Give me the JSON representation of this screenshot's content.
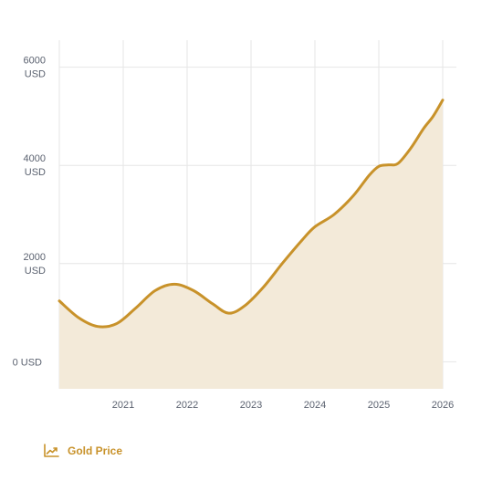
{
  "chart_data": {
    "type": "area",
    "title": "",
    "xlabel": "",
    "ylabel": "",
    "x_ticks": [
      "2021",
      "2022",
      "2023",
      "2024",
      "2025",
      "2026"
    ],
    "y_ticks": [
      {
        "value": 0,
        "line1": "0 USD",
        "line2": ""
      },
      {
        "value": 2000,
        "line1": "2000",
        "line2": "USD"
      },
      {
        "value": 4000,
        "line1": "4000",
        "line2": "USD"
      },
      {
        "value": 6000,
        "line1": "6000",
        "line2": "USD"
      }
    ],
    "xlim": [
      2020.0,
      2026.0
    ],
    "ylim": [
      -550,
      6550
    ],
    "grid": true,
    "legend_position": "bottom-left",
    "series": [
      {
        "name": "Gold Price",
        "color": "#c8922a",
        "fill": "#f3ead9",
        "x": [
          2020.0,
          2020.3,
          2020.6,
          2020.9,
          2021.2,
          2021.5,
          2021.8,
          2022.1,
          2022.4,
          2022.65,
          2022.9,
          2023.2,
          2023.5,
          2023.8,
          2024.0,
          2024.3,
          2024.6,
          2024.85,
          2025.0,
          2025.15,
          2025.3,
          2025.5,
          2025.7,
          2025.85,
          2026.0
        ],
        "values": [
          1240,
          900,
          720,
          780,
          1100,
          1450,
          1580,
          1450,
          1180,
          990,
          1140,
          1530,
          2020,
          2480,
          2750,
          3000,
          3380,
          3800,
          3980,
          4010,
          4040,
          4350,
          4750,
          5000,
          5330
        ]
      }
    ]
  },
  "legend": {
    "label": "Gold Price",
    "icon": "trending-up-icon"
  }
}
